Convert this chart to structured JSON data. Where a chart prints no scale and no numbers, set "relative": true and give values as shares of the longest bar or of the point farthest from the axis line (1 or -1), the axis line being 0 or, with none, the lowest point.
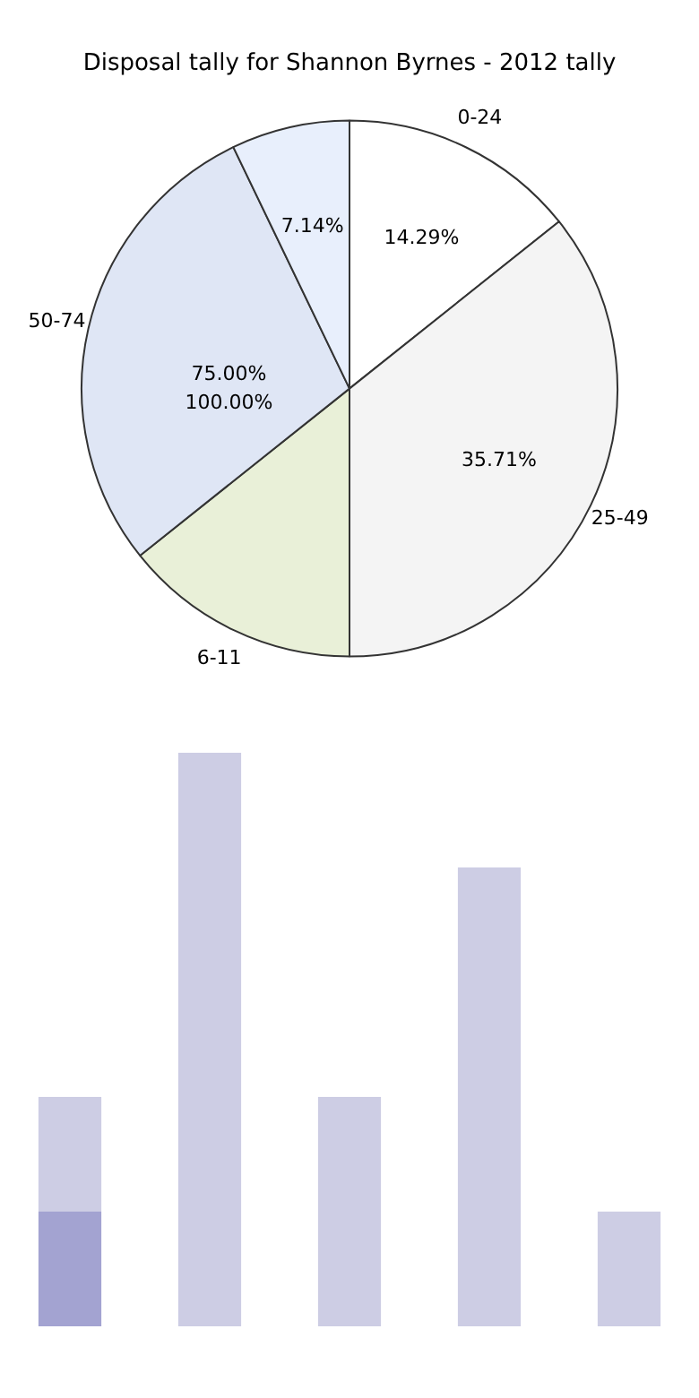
{
  "chart_data": [
    {
      "type": "pie",
      "title": "Disposal tally for Shannon Byrnes - 2012 tally",
      "categories": [
        "0-24",
        "25-49",
        "6-11",
        "50-74",
        null
      ],
      "values": [
        14.29,
        35.71,
        14.29,
        28.57,
        7.14
      ],
      "value_labels": [
        "14.29%",
        "35.71%",
        null,
        null,
        "7.14%"
      ],
      "colors": [
        "#ffffff",
        "#f4f4f4",
        "#e9f0d8",
        "#dfe6f5",
        "#e8effc"
      ],
      "annotations": [
        "75.00%",
        "100.00%"
      ],
      "legend": false
    },
    {
      "type": "bar",
      "categories": [
        null,
        null,
        null,
        null,
        null
      ],
      "relative": true,
      "stacked": true,
      "legend": false,
      "series": [
        {
          "color": "#a3a3d1",
          "values": [
            0.2,
            null,
            null,
            null,
            null
          ]
        },
        {
          "color": "#cdcde4",
          "values": [
            0.2,
            1,
            0.4,
            0.8,
            0.2
          ]
        }
      ]
    }
  ]
}
